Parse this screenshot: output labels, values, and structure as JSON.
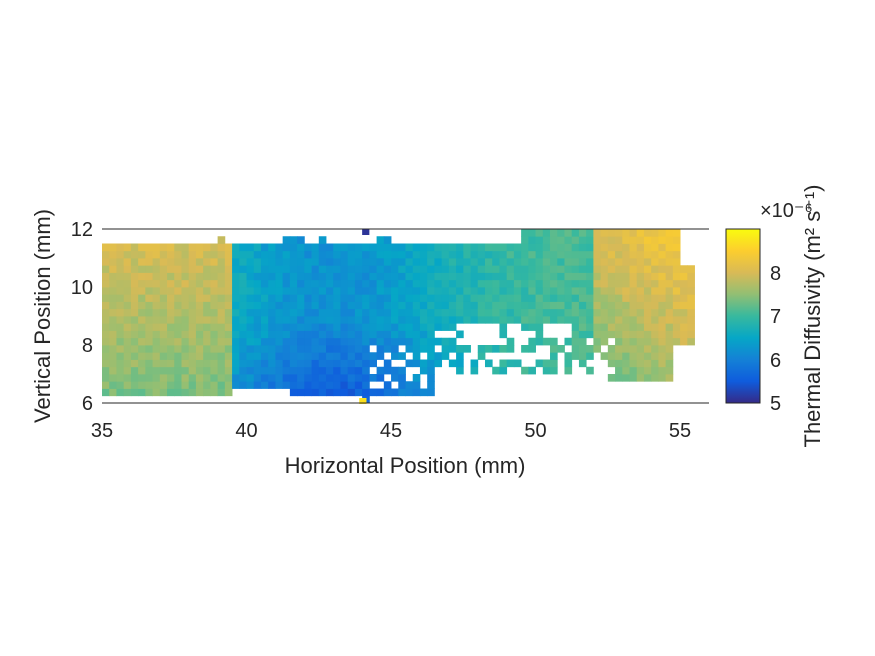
{
  "chart_data": {
    "type": "heatmap",
    "xlabel": "Horizontal Position (mm)",
    "ylabel": "Vertical Position (mm)",
    "colorbar_label": "Thermal Diffusivity (m² s⁻¹)",
    "colorbar_exponent": "×10⁻⁶",
    "xlim": [
      35,
      56
    ],
    "ylim": [
      6,
      12
    ],
    "clim": [
      5,
      9
    ],
    "x_ticks": [
      "35",
      "40",
      "45",
      "50",
      "55"
    ],
    "y_ticks": [
      "6",
      "8",
      "10",
      "12"
    ],
    "colorbar_ticks": [
      "5",
      "6",
      "7",
      "8"
    ],
    "colormap": "parula",
    "field_description_pts": {
      "note": "approximate diffusivity (x10^-6 m^2/s) at sampled positions (x mm, y mm)",
      "points": [
        [
          35.5,
          11.0,
          8.1
        ],
        [
          37.5,
          11.0,
          8.3
        ],
        [
          36.5,
          9.0,
          7.6
        ],
        [
          37.5,
          7.0,
          7.4
        ],
        [
          39.0,
          10.0,
          7.6
        ],
        [
          41.0,
          10.5,
          6.9
        ],
        [
          42.5,
          8.0,
          6.3
        ],
        [
          42.5,
          7.0,
          6.0
        ],
        [
          44.0,
          9.5,
          6.4
        ],
        [
          46.0,
          10.0,
          6.7
        ],
        [
          48.0,
          11.0,
          6.9
        ],
        [
          50.0,
          10.0,
          7.0
        ],
        [
          51.5,
          9.0,
          7.5
        ],
        [
          53.0,
          10.5,
          7.7
        ],
        [
          54.5,
          11.5,
          8.3
        ],
        [
          54.0,
          8.0,
          7.6
        ],
        [
          47.5,
          7.5,
          7.6
        ],
        [
          50.5,
          7.5,
          8.0
        ],
        [
          45.5,
          7.0,
          7.0
        ]
      ]
    }
  },
  "colors": {
    "parula": [
      "#352a87",
      "#0f5cdd",
      "#1481d6",
      "#06a7c6",
      "#38b99e",
      "#92bf73",
      "#d9ba56",
      "#fcce2e",
      "#f9fb0e"
    ],
    "axis": "#262626"
  }
}
